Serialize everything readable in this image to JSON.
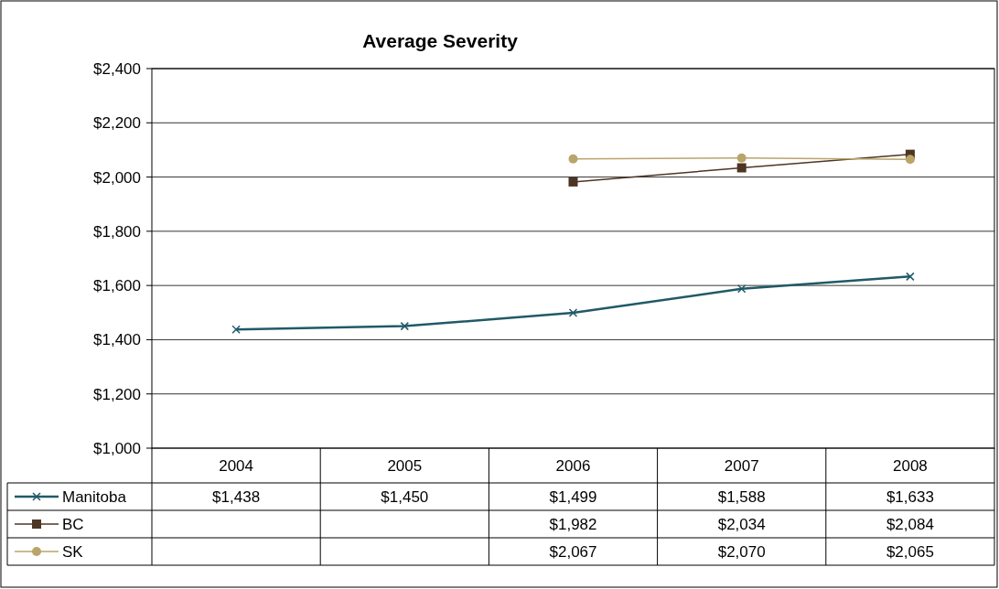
{
  "chart_data": {
    "type": "line",
    "title": "Average Severity",
    "categories": [
      "2004",
      "2005",
      "2006",
      "2007",
      "2008"
    ],
    "series": [
      {
        "name": "Manitoba",
        "color": "#215968",
        "marker": "cross",
        "values": [
          1438,
          1450,
          1499,
          1588,
          1633
        ],
        "value_labels": [
          "$1,438",
          "$1,450",
          "$1,499",
          "$1,588",
          "$1,633"
        ]
      },
      {
        "name": "BC",
        "color": "#4d3524",
        "marker": "square",
        "values": [
          null,
          null,
          1982,
          2034,
          2084
        ],
        "value_labels": [
          null,
          null,
          "$1,982",
          "$2,034",
          "$2,084"
        ]
      },
      {
        "name": "SK",
        "color": "#b9a46a",
        "marker": "circle",
        "values": [
          null,
          null,
          2067,
          2070,
          2065
        ],
        "value_labels": [
          null,
          null,
          "$2,067",
          "$2,070",
          "$2,065"
        ]
      }
    ],
    "ylim": [
      1000,
      2400
    ],
    "yticks": [
      {
        "value": 1000,
        "label": "$1,000"
      },
      {
        "value": 1200,
        "label": "$1,200"
      },
      {
        "value": 1400,
        "label": "$1,400"
      },
      {
        "value": 1600,
        "label": "$1,600"
      },
      {
        "value": 1800,
        "label": "$1,800"
      },
      {
        "value": 2000,
        "label": "$2,000"
      },
      {
        "value": 2200,
        "label": "$2,200"
      },
      {
        "value": 2400,
        "label": "$2,400"
      }
    ],
    "grid": "y",
    "legend": "bottom"
  }
}
